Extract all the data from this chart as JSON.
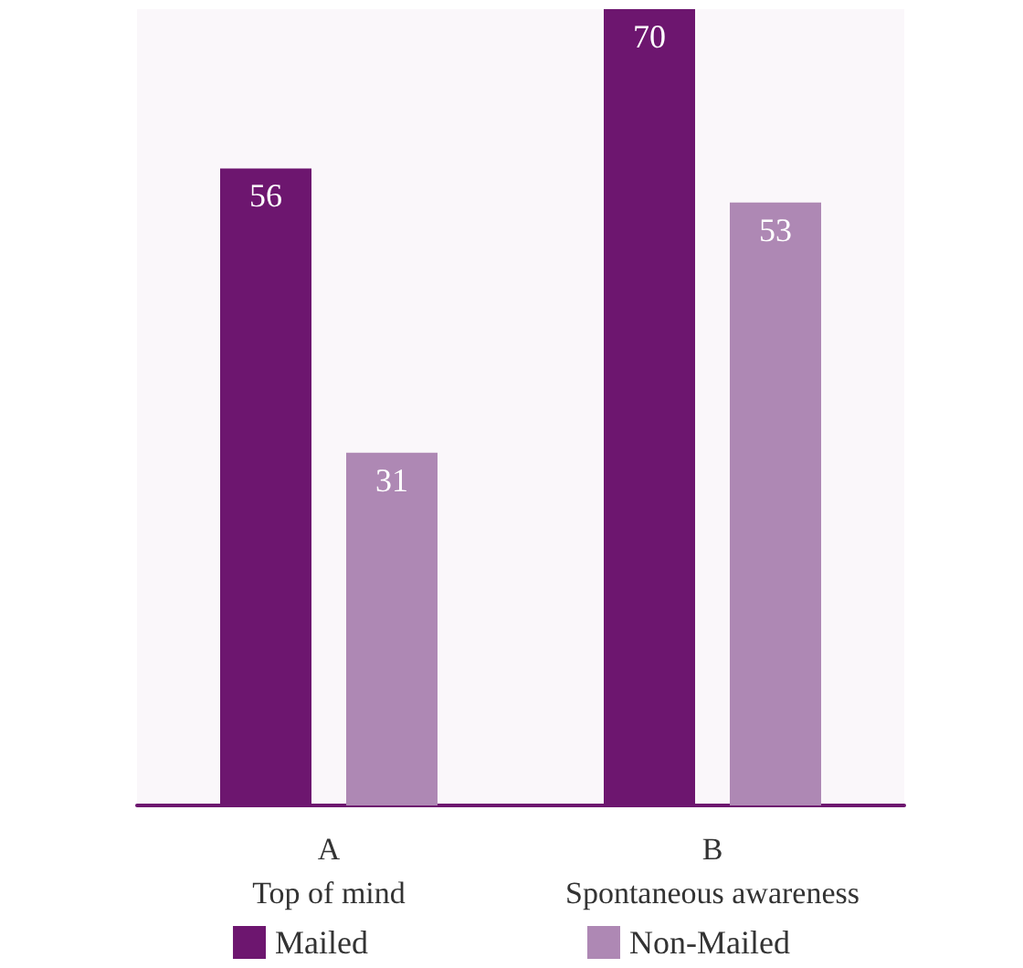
{
  "chart_data": {
    "type": "bar",
    "categories": [
      "A\nTop of mind",
      "B\nSpontaneous awareness"
    ],
    "series": [
      {
        "name": "Mailed",
        "color": "#6d166f",
        "values": [
          56,
          70
        ]
      },
      {
        "name": "Non-Mailed",
        "color": "#ae88b4",
        "values": [
          31,
          53
        ]
      }
    ],
    "data_labels": true,
    "legend": "bottom"
  }
}
